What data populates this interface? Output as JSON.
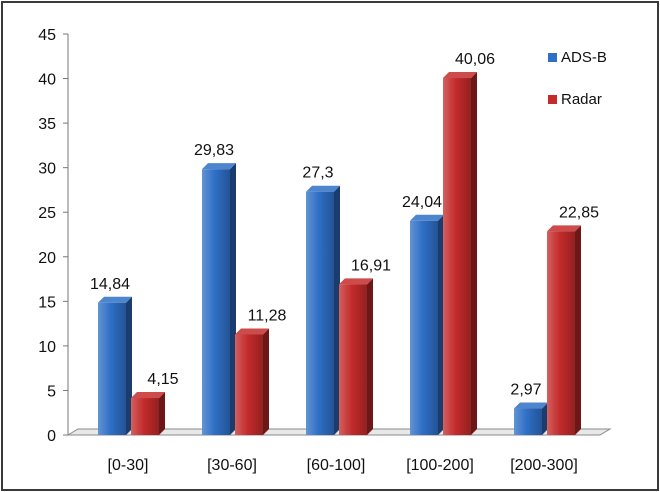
{
  "chart_data": {
    "type": "bar",
    "style": "3d-clustered",
    "title": "",
    "xlabel": "",
    "ylabel": "",
    "ylim": [
      0,
      45
    ],
    "yticks": [
      0,
      5,
      10,
      15,
      20,
      25,
      30,
      35,
      40,
      45
    ],
    "grid": false,
    "legend": "top-right",
    "categories": [
      "[0-30]",
      "[30-60]",
      "[60-100]",
      "[100-200]",
      "[200-300]"
    ],
    "series": [
      {
        "name": "ADS-B",
        "color": "#2f6fc6",
        "values": [
          14.84,
          29.83,
          27.3,
          24.04,
          2.97
        ],
        "labels": [
          "14,84",
          "29,83",
          "27,3",
          "24,04",
          "2,97"
        ]
      },
      {
        "name": "Radar",
        "color": "#c42b2b",
        "values": [
          4.15,
          11.28,
          16.91,
          40.06,
          22.85
        ],
        "labels": [
          "4,15",
          "11,28",
          "16,91",
          "40,06",
          "22,85"
        ]
      }
    ]
  }
}
